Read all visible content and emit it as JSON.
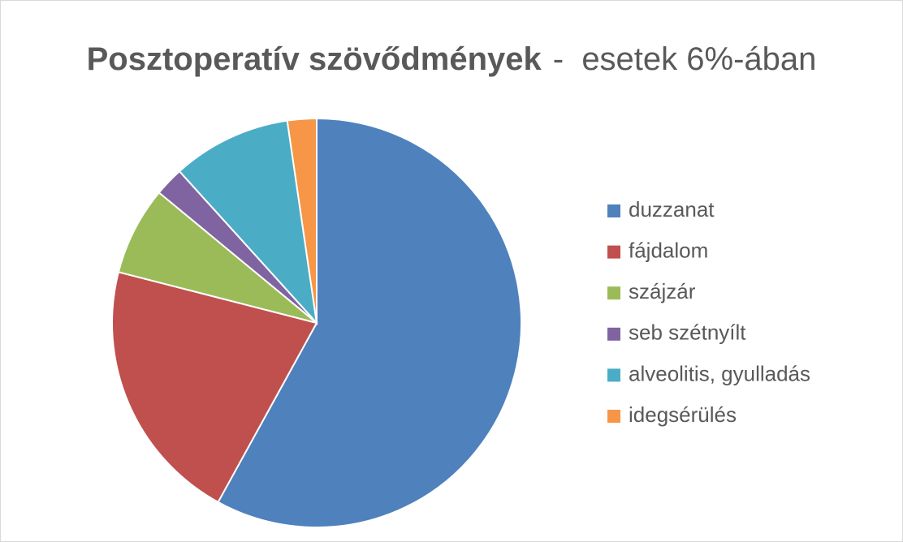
{
  "chart_data": {
    "type": "pie",
    "title": "Posztoperatív szövődmények",
    "subtitle": "-  esetek 6%-ában",
    "categories": [
      "duzzanat",
      "fájdalom",
      "szájzár",
      "seb szétnyílt",
      "alveolitis, gyulladás",
      "idegsérülés"
    ],
    "values": [
      58,
      21,
      7,
      2.3,
      9.4,
      2.3
    ],
    "colors": [
      "#4f81bd",
      "#c0504d",
      "#9bbb59",
      "#8064a2",
      "#4bacc6",
      "#f79646"
    ],
    "legend": "right"
  }
}
